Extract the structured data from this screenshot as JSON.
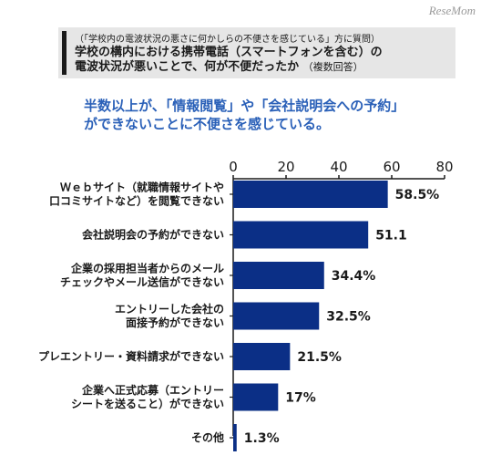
{
  "watermark": "ReseMom",
  "question": {
    "note": "（「学校内の電波状況の悪さに何かしらの不便さを感じている」方に質問）",
    "title_line1": "学校の構内における携帯電話（スマートフォンを含む）の",
    "title_line2": "電波状況が悪いことで、何が不便だったか",
    "title_suffix": "（複数回答）"
  },
  "headline": {
    "line1": "半数以上が、「情報閲覧」や「会社説明会への予約」",
    "line2": "ができないことに不便さを感じている。"
  },
  "colors": {
    "bar": "#0b2f86",
    "headline": "#2a60b8",
    "header_bg": "#e6e6e6"
  },
  "chart_data": {
    "type": "bar",
    "orientation": "horizontal",
    "xlim": [
      0,
      80
    ],
    "x_ticks": [
      "0",
      "20",
      "40",
      "60",
      "80"
    ],
    "grid": false,
    "categories": [
      [
        "Ｗｅｂサイト（就職情報サイトや",
        "口コミサイトなど）を閲覧できない"
      ],
      [
        "会社説明会の予約ができない"
      ],
      [
        "企業の採用担当者からのメール",
        "チェックやメール送信ができない"
      ],
      [
        "エントリーした会社の",
        "面接予約ができない"
      ],
      [
        "プレエントリー・資料請求ができない"
      ],
      [
        "企業へ正式応募（エントリー",
        "シートを送ること）ができない"
      ],
      [
        "その他"
      ]
    ],
    "values": [
      58.5,
      51.1,
      34.4,
      32.5,
      21.5,
      17,
      1.3
    ],
    "value_labels": [
      "58.5%",
      "51.1",
      "34.4%",
      "32.5%",
      "21.5%",
      "17%",
      "1.3%"
    ]
  }
}
